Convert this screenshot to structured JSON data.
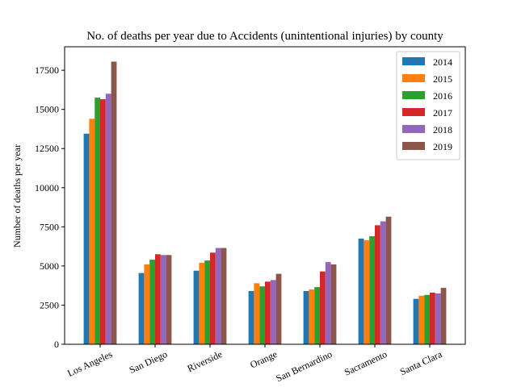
{
  "chart_data": {
    "type": "bar",
    "title": "No. of deaths per year due to Accidents (unintentional injuries) by county",
    "xlabel": "",
    "ylabel": "Number of deaths per year",
    "ylim": [
      0,
      19000
    ],
    "yticks": [
      0,
      2500,
      5000,
      7500,
      10000,
      12500,
      15000,
      17500
    ],
    "grid": false,
    "legend_position": "top-right",
    "categories": [
      "Los Angeles",
      "San Diego",
      "Riverside",
      "Orange",
      "San Bernardino",
      "Sacramento",
      "Santa Clara"
    ],
    "series": [
      {
        "name": "2014",
        "color": "#1f77b4",
        "values": [
          13450,
          4550,
          4700,
          3400,
          3400,
          6750,
          2900
        ]
      },
      {
        "name": "2015",
        "color": "#ff7f0e",
        "values": [
          14400,
          5100,
          5200,
          3900,
          3500,
          6650,
          3100
        ]
      },
      {
        "name": "2016",
        "color": "#2ca02c",
        "values": [
          15750,
          5400,
          5350,
          3700,
          3650,
          6900,
          3150
        ]
      },
      {
        "name": "2017",
        "color": "#d62728",
        "values": [
          15650,
          5750,
          5850,
          4000,
          4650,
          7600,
          3300
        ]
      },
      {
        "name": "2018",
        "color": "#9467bd",
        "values": [
          16000,
          5700,
          6150,
          4100,
          5250,
          7850,
          3250
        ]
      },
      {
        "name": "2019",
        "color": "#8c564b",
        "values": [
          18050,
          5700,
          6150,
          4500,
          5100,
          8150,
          3600
        ]
      }
    ]
  }
}
